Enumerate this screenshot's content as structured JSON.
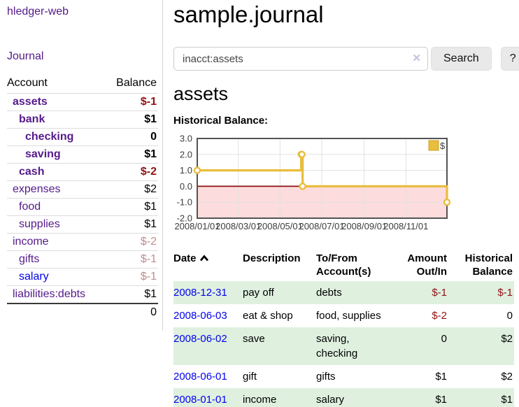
{
  "colors": {
    "link_purple": "#551a8b",
    "link_blue": "#0202ee",
    "negative": "#8e1414",
    "negative_dim": "#c08c8c",
    "row_stripe_green": "#dff0df",
    "chart_series_gold": "#e9bd3e",
    "chart_negative_fill": "#fcdcdc",
    "chart_zero_line": "#8b1010",
    "chart_grid": "#e2e2e2",
    "chart_border": "#545454"
  },
  "sidebar": {
    "app_title": "hledger-web",
    "nav_journal": "Journal",
    "accounts_table": {
      "account_header": "Account",
      "balance_header": "Balance",
      "rows": [
        {
          "name": "assets",
          "depth": 1,
          "bold": true,
          "link": "purple",
          "balance": "$-1",
          "bal_tone": "neg"
        },
        {
          "name": "bank",
          "depth": 2,
          "bold": true,
          "link": "purple",
          "balance": "$1",
          "bal_tone": "pos"
        },
        {
          "name": "checking",
          "depth": 3,
          "bold": true,
          "link": "purple",
          "balance": "0",
          "bal_tone": "pos"
        },
        {
          "name": "saving",
          "depth": 3,
          "bold": true,
          "link": "purple",
          "balance": "$1",
          "bal_tone": "pos"
        },
        {
          "name": "cash",
          "depth": 2,
          "bold": true,
          "link": "purple",
          "balance": "$-2",
          "bal_tone": "neg"
        },
        {
          "name": "expenses",
          "depth": 1,
          "bold": false,
          "link": "purple",
          "balance": "$2",
          "bal_tone": "pos"
        },
        {
          "name": "food",
          "depth": 2,
          "bold": false,
          "link": "purple",
          "balance": "$1",
          "bal_tone": "pos"
        },
        {
          "name": "supplies",
          "depth": 2,
          "bold": false,
          "link": "purple",
          "balance": "$1",
          "bal_tone": "pos"
        },
        {
          "name": "income",
          "depth": 1,
          "bold": false,
          "link": "purple",
          "balance": "$-2",
          "bal_tone": "neg-dim"
        },
        {
          "name": "gifts",
          "depth": 2,
          "bold": false,
          "link": "purple",
          "balance": "$-1",
          "bal_tone": "neg-dim"
        },
        {
          "name": "salary",
          "depth": 2,
          "bold": false,
          "link": "blue",
          "balance": "$-1",
          "bal_tone": "neg-dim"
        },
        {
          "name": "liabilities:debts",
          "depth": 1,
          "bold": false,
          "link": "purple",
          "balance": "$1",
          "bal_tone": "pos"
        }
      ],
      "total": "0"
    }
  },
  "main": {
    "title": "sample.journal",
    "search": {
      "query": "inacct:assets",
      "clear_label": "✕",
      "button_label": "Search",
      "help_label": "?"
    },
    "account_heading": "assets",
    "chart_label": "Historical Balance:"
  },
  "chart_data": {
    "type": "line",
    "step": true,
    "title": "Historical Balance of assets",
    "series": [
      {
        "name": "$",
        "color": "#e9bd3e",
        "points": [
          [
            "2008-01-01",
            1
          ],
          [
            "2008-06-01",
            2
          ],
          [
            "2008-06-02",
            2
          ],
          [
            "2008-06-03",
            0
          ],
          [
            "2008-12-31",
            -1
          ]
        ]
      }
    ],
    "x_ticks": [
      {
        "date": "2008-01-01",
        "label": "2008/01/01"
      },
      {
        "date": "2008-03-01",
        "label": "2008/03/01"
      },
      {
        "date": "2008-05-01",
        "label": "2008/05/01"
      },
      {
        "date": "2008-07-01",
        "label": "2008/07/01"
      },
      {
        "date": "2008-09-01",
        "label": "2008/09/01"
      },
      {
        "date": "2008-11-01",
        "label": "2008/11/01"
      }
    ],
    "y_ticks": [
      "3.0",
      "2.0",
      "1.0",
      "0.0",
      "-1.0",
      "-2.0"
    ],
    "xlim": [
      "2008-01-01",
      "2008-12-31"
    ],
    "ylim": [
      -2,
      3
    ],
    "grid": true,
    "legend": {
      "label": "$",
      "position": "top-right"
    }
  },
  "journal_table": {
    "columns": [
      {
        "label": "Date",
        "sorted": "asc"
      },
      {
        "label": "Description"
      },
      {
        "label": "To/From Account(s)"
      },
      {
        "label": "Amount Out/In"
      },
      {
        "label": "Historical Balance"
      }
    ],
    "rows": [
      {
        "date": "2008-12-31",
        "description": "pay off",
        "accounts": "debts",
        "amount": "$-1",
        "amount_tone": "neg",
        "balance": "$-1",
        "balance_tone": "neg"
      },
      {
        "date": "2008-06-03",
        "description": "eat & shop",
        "accounts": "food, supplies",
        "amount": "$-2",
        "amount_tone": "neg",
        "balance": "0",
        "balance_tone": "pos"
      },
      {
        "date": "2008-06-02",
        "description": "save",
        "accounts": "saving, checking",
        "amount": "0",
        "amount_tone": "pos",
        "balance": "$2",
        "balance_tone": "pos"
      },
      {
        "date": "2008-06-01",
        "description": "gift",
        "accounts": "gifts",
        "amount": "$1",
        "amount_tone": "pos",
        "balance": "$2",
        "balance_tone": "pos"
      },
      {
        "date": "2008-01-01",
        "description": "income",
        "accounts": "salary",
        "amount": "$1",
        "amount_tone": "pos",
        "balance": "$1",
        "balance_tone": "pos"
      }
    ]
  }
}
